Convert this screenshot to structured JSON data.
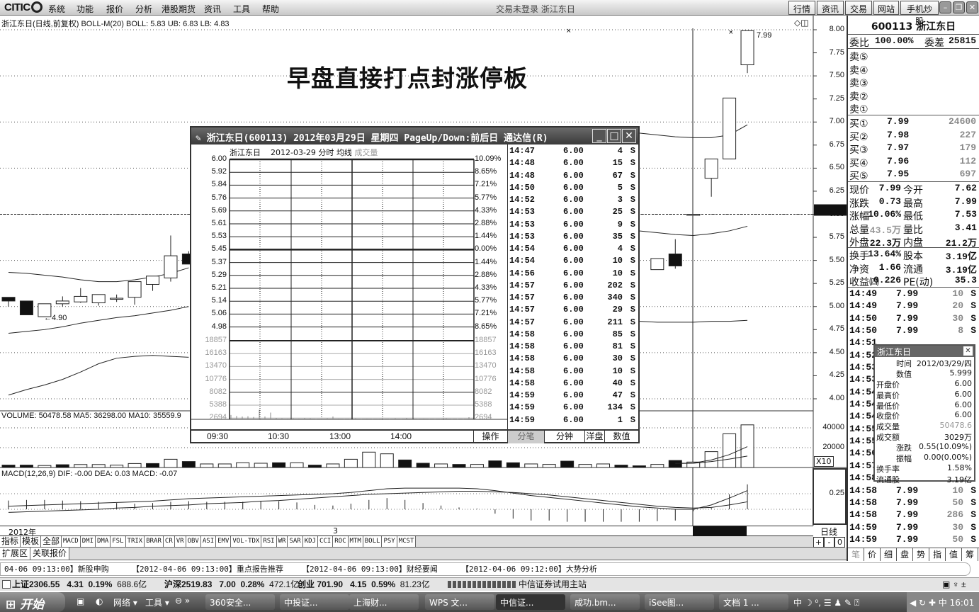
{
  "app": {
    "logo_text": "CITIC",
    "window_title": "交易未登录 浙江东日",
    "menu": [
      "系统",
      "功能",
      "报价",
      "分析",
      "港股期货",
      "资讯",
      "工具",
      "帮助"
    ],
    "top_buttons": [
      "行情",
      "资讯",
      "交易",
      "网站",
      "手机炒股"
    ],
    "window_controls": [
      "minimize-icon",
      "restore-icon",
      "close-icon"
    ]
  },
  "chart": {
    "info": "浙江东日(日线,前复权) BOLL-M(20) BOLL: 5.83 UB: 6.83 LB: 4.83",
    "annotation": "早盘直接打点封涨停板",
    "low_label": "←4.90",
    "high_label": "7.99",
    "y_ticks": [
      "8.00",
      "7.75",
      "7.50",
      "7.25",
      "7.00",
      "6.75",
      "6.50",
      "6.25",
      "6.00",
      "5.75",
      "5.50",
      "5.25",
      "5.00",
      "4.75",
      "4.50",
      "4.25",
      "4.00"
    ],
    "volume_info": "VOLUME: 50478.58 MA5: 36298.00 MA10: 35559.9",
    "volume_ticks": [
      "40000",
      "20000"
    ],
    "volume_unit": "X10",
    "macd_info": "MACD(12,26,9) DIF: -0.00 DEA: 0.03 MACD: -0.07",
    "macd_ticks": [
      "0.25"
    ],
    "date_labels": [
      "2012年",
      "3"
    ],
    "period_label": "日线",
    "zoom_buttons": [
      "+",
      "-",
      "0"
    ]
  },
  "chart_data": {
    "type": "candlestick",
    "y_range": [
      4.0,
      8.0
    ],
    "candles": [
      [
        5.1,
        5.1,
        5.0,
        5.06
      ],
      [
        5.06,
        5.06,
        4.91,
        4.91
      ],
      [
        4.89,
        5.03,
        4.9,
        5.03
      ],
      [
        5.03,
        5.11,
        5.0,
        5.06
      ],
      [
        5.05,
        5.2,
        5.04,
        5.11
      ],
      [
        5.04,
        5.13,
        5.01,
        5.13
      ],
      [
        5.09,
        5.13,
        5.05,
        5.09
      ],
      [
        5.1,
        5.27,
        5.02,
        5.27
      ],
      [
        5.24,
        5.33,
        5.17,
        5.33
      ],
      [
        5.31,
        5.77,
        5.27,
        5.55
      ],
      [
        5.57,
        5.6,
        5.46,
        5.46
      ],
      null,
      null,
      null,
      null,
      null,
      null,
      null,
      null,
      null,
      null,
      null,
      null,
      null,
      null,
      null,
      null,
      null,
      null,
      null,
      null,
      null,
      null,
      null,
      null,
      null,
      [
        5.4,
        5.52,
        5.4,
        5.52
      ],
      [
        5.57,
        5.73,
        5.41,
        5.44
      ],
      [
        6.0,
        6.0,
        5.99,
        6.0
      ],
      [
        6.39,
        6.6,
        6.19,
        6.6
      ],
      [
        6.6,
        7.26,
        6.6,
        7.26
      ],
      [
        7.62,
        7.99,
        7.53,
        7.99
      ]
    ],
    "boll_upper": [
      5.37,
      5.36,
      5.34,
      5.32,
      5.29,
      5.27,
      5.27,
      5.29,
      5.32,
      5.36,
      5.42,
      null,
      null,
      null,
      null,
      null,
      null,
      null,
      null,
      null,
      null,
      null,
      null,
      null,
      null,
      null,
      null,
      null,
      null,
      null,
      null,
      null,
      null,
      null,
      null,
      6.88,
      6.86,
      6.84,
      6.83,
      6.83,
      6.86,
      6.97
    ],
    "boll_mid": [
      4.71,
      4.73,
      4.75,
      4.78,
      4.82,
      4.85,
      4.88,
      4.9,
      4.93,
      4.96,
      5.0,
      null,
      null,
      null,
      null,
      null,
      null,
      null,
      null,
      null,
      null,
      null,
      null,
      null,
      null,
      null,
      null,
      null,
      null,
      null,
      null,
      null,
      null,
      null,
      null,
      5.82,
      5.8,
      5.78,
      5.77,
      5.79,
      5.82,
      5.87
    ],
    "boll_lower": [
      4.04,
      4.1,
      4.15,
      4.21,
      4.29,
      4.38,
      4.44,
      4.46,
      4.47,
      4.46,
      4.45,
      null,
      null,
      null,
      null,
      null,
      null,
      null,
      null,
      null,
      null,
      null,
      null,
      null,
      null,
      null,
      null,
      null,
      null,
      null,
      null,
      null,
      null,
      null,
      null,
      4.84,
      4.83,
      4.83,
      4.83,
      4.84,
      4.84,
      4.85
    ],
    "volume": [
      2400,
      2400,
      2000,
      2800,
      3000,
      3000,
      2400,
      4000,
      4000,
      8300,
      6000,
      3600,
      3600,
      4800,
      4300,
      4800,
      4800,
      2400,
      3600,
      8300,
      15500,
      13800,
      7600,
      4300,
      3600,
      3100,
      3100,
      6700,
      4800,
      3600,
      3100,
      6400,
      3100,
      3600,
      2400,
      1700,
      3100,
      7100,
      5500,
      16000,
      34000,
      43000
    ],
    "volume_up": [
      0,
      0,
      1,
      0,
      1,
      1,
      1,
      1,
      0,
      1,
      0,
      1,
      1,
      1,
      1,
      0,
      1,
      0,
      1,
      1,
      1,
      1,
      0,
      0,
      1,
      0,
      1,
      0,
      0,
      1,
      1,
      0,
      1,
      1,
      0,
      0,
      1,
      0,
      1,
      1,
      1,
      1
    ],
    "volume_ma5": [
      null,
      null,
      null,
      null,
      null,
      null,
      null,
      null,
      null,
      null,
      null,
      null,
      null,
      null,
      null,
      null,
      null,
      null,
      null,
      null,
      null,
      null,
      null,
      null,
      null,
      null,
      null,
      null,
      null,
      null,
      null,
      null,
      null,
      null,
      null,
      null,
      null,
      4200,
      4500,
      7600,
      13000,
      21000
    ],
    "volume_ma10": [
      null,
      null,
      null,
      null,
      null,
      null,
      null,
      null,
      null,
      null,
      null,
      null,
      null,
      null,
      null,
      null,
      null,
      null,
      null,
      null,
      null,
      null,
      null,
      null,
      null,
      null,
      null,
      null,
      null,
      null,
      null,
      null,
      null,
      null,
      null,
      null,
      null,
      4000,
      4300,
      6000,
      8500,
      11500
    ],
    "macd_hist": [
      0.14,
      0.15,
      0.15,
      0.14,
      0.13,
      0.12,
      0.1,
      0.09,
      0.1,
      0.12,
      0.13,
      0.12,
      0.12,
      0.12,
      0.13,
      0.13,
      0.11,
      0.07,
      0.06,
      0.09,
      0.15,
      0.18,
      0.15,
      0.1,
      0.06,
      0.03,
      0.01,
      -0.07,
      -0.15,
      -0.18,
      -0.18,
      -0.2,
      -0.2,
      -0.2,
      -0.2,
      -0.2,
      -0.19,
      -0.18,
      -0.03,
      0.02,
      0.24,
      0.4
    ],
    "dif": [
      0.05,
      0.06,
      0.07,
      0.08,
      0.09,
      0.1,
      0.11,
      0.12,
      0.13,
      0.15,
      0.17,
      0.18,
      0.19,
      0.2,
      0.21,
      0.22,
      0.23,
      0.24,
      0.25,
      0.27,
      0.3,
      0.33,
      0.34,
      0.34,
      0.34,
      0.34,
      0.33,
      0.3,
      0.26,
      0.22,
      0.19,
      0.16,
      0.13,
      0.1,
      0.07,
      0.04,
      0.02,
      0.0,
      0.0,
      0.07,
      0.18,
      0.3
    ],
    "dea": [
      -0.05,
      -0.04,
      -0.03,
      -0.02,
      -0.01,
      0.0,
      0.02,
      0.03,
      0.05,
      0.06,
      0.07,
      0.09,
      0.1,
      0.11,
      0.13,
      0.14,
      0.16,
      0.18,
      0.2,
      0.22,
      0.24,
      0.25,
      0.26,
      0.27,
      0.28,
      0.29,
      0.29,
      0.28,
      0.27,
      0.25,
      0.23,
      0.2,
      0.17,
      0.14,
      0.11,
      0.08,
      0.05,
      0.03,
      0.02,
      0.03,
      0.07,
      0.12
    ]
  },
  "popup": {
    "title": "浙江东日(600113) 2012年03月29日 星期四 PageUp/Down:前后日 通达信(R)",
    "sub_name": "浙江东日",
    "sub_date": "2012-03-29 分时",
    "sub_avg": "均线",
    "sub_vol": "成交量",
    "price_labels": [
      "6.00",
      "5.92",
      "5.84",
      "5.76",
      "5.69",
      "5.61",
      "5.53",
      "5.45",
      "5.37",
      "5.29",
      "5.21",
      "5.14",
      "5.06",
      "4.98"
    ],
    "pct_labels": [
      "10.09%",
      "8.65%",
      "7.21%",
      "5.77%",
      "4.33%",
      "2.88%",
      "1.44%",
      "0.00%",
      "1.44%",
      "2.88%",
      "4.33%",
      "5.77%",
      "7.21%",
      "8.65%"
    ],
    "vol_labels": [
      "18857",
      "16163",
      "13470",
      "10776",
      "8082",
      "5388",
      "2694"
    ],
    "time_labels": [
      "09:30",
      "10:30",
      "13:00",
      "14:00"
    ],
    "tabs": [
      "操作",
      "分笔",
      "分钟",
      "洋盘",
      "数值"
    ],
    "active_tab": "分笔",
    "minute_volume": [
      900,
      700,
      600,
      650,
      500,
      2000,
      600,
      1400,
      300,
      200,
      150,
      200,
      150,
      250,
      200,
      100,
      150,
      200,
      600,
      150,
      100,
      100,
      200,
      100,
      150,
      100,
      120,
      100,
      90,
      200,
      100,
      300,
      100,
      100,
      150,
      100,
      100,
      100,
      200,
      100,
      80,
      100,
      450
    ],
    "ticks": [
      [
        "14:47",
        "6.00",
        "4",
        "S"
      ],
      [
        "14:48",
        "6.00",
        "15",
        "S"
      ],
      [
        "14:48",
        "6.00",
        "67",
        "S"
      ],
      [
        "14:50",
        "6.00",
        "5",
        "S"
      ],
      [
        "14:52",
        "6.00",
        "3",
        "S"
      ],
      [
        "14:53",
        "6.00",
        "25",
        "S"
      ],
      [
        "14:53",
        "6.00",
        "9",
        "S"
      ],
      [
        "14:53",
        "6.00",
        "35",
        "S"
      ],
      [
        "14:54",
        "6.00",
        "4",
        "S"
      ],
      [
        "14:54",
        "6.00",
        "10",
        "S"
      ],
      [
        "14:56",
        "6.00",
        "10",
        "S"
      ],
      [
        "14:57",
        "6.00",
        "202",
        "S"
      ],
      [
        "14:57",
        "6.00",
        "340",
        "S"
      ],
      [
        "14:57",
        "6.00",
        "29",
        "S"
      ],
      [
        "14:57",
        "6.00",
        "211",
        "S"
      ],
      [
        "14:58",
        "6.00",
        "85",
        "S"
      ],
      [
        "14:58",
        "6.00",
        "81",
        "S"
      ],
      [
        "14:58",
        "6.00",
        "30",
        "S"
      ],
      [
        "14:58",
        "6.00",
        "10",
        "S"
      ],
      [
        "14:58",
        "6.00",
        "40",
        "S"
      ],
      [
        "14:59",
        "6.00",
        "47",
        "S"
      ],
      [
        "14:59",
        "6.00",
        "134",
        "S"
      ],
      [
        "14:59",
        "6.00",
        "1",
        "S"
      ]
    ]
  },
  "quote": {
    "header": "600113 浙江东日",
    "weibi_label": "委比",
    "weibi": "100.00%",
    "weicha_label": "委差",
    "weicha": "25815",
    "sells": [
      "卖⑤",
      "卖④",
      "卖③",
      "卖②",
      "卖①"
    ],
    "buys": [
      [
        "买①",
        "7.99",
        "24600"
      ],
      [
        "买②",
        "7.98",
        "227"
      ],
      [
        "买③",
        "7.97",
        "179"
      ],
      [
        "买④",
        "7.96",
        "112"
      ],
      [
        "买⑤",
        "7.95",
        "697"
      ]
    ],
    "stats": [
      [
        "现价",
        "7.99",
        "今开",
        "7.62"
      ],
      [
        "涨跌",
        "0.73",
        "最高",
        "7.99"
      ],
      [
        "涨幅",
        "10.06%",
        "最低",
        "7.53"
      ],
      [
        "总量",
        "43.5万",
        "量比",
        "3.41"
      ],
      [
        "外盘",
        "22.3万",
        "内盘",
        "21.2万"
      ]
    ],
    "stats2": [
      [
        "换手",
        "13.64%",
        "股本",
        "3.19亿"
      ],
      [
        "净资",
        "1.66",
        "流通",
        "3.19亿"
      ],
      [
        "收益㈣",
        "0.226",
        "PE(动)",
        "35.3"
      ]
    ],
    "trades": [
      [
        "14:49",
        "7.99",
        "10",
        "S"
      ],
      [
        "14:49",
        "7.99",
        "20",
        "S"
      ],
      [
        "14:50",
        "7.99",
        "30",
        "S"
      ],
      [
        "14:50",
        "7.99",
        "8",
        "S"
      ],
      [
        "14:51",
        "",
        "",
        ""
      ],
      [
        "14:52",
        "",
        "",
        ""
      ],
      [
        "14:53",
        "",
        "",
        ""
      ],
      [
        "14:53",
        "",
        "",
        ""
      ],
      [
        "14:54",
        "",
        "",
        ""
      ],
      [
        "14:54",
        "",
        "",
        ""
      ],
      [
        "14:54",
        "",
        "",
        ""
      ],
      [
        "14:55",
        "",
        "",
        ""
      ],
      [
        "14:55",
        "",
        "",
        ""
      ],
      [
        "14:56",
        "",
        "",
        ""
      ],
      [
        "14:57",
        "",
        "",
        ""
      ],
      [
        "14:58",
        "",
        "",
        ""
      ],
      [
        "14:58",
        "7.99",
        "10",
        "S"
      ],
      [
        "14:58",
        "7.99",
        "50",
        "S"
      ],
      [
        "14:58",
        "7.99",
        "286",
        "S"
      ],
      [
        "14:59",
        "7.99",
        "30",
        "S"
      ],
      [
        "14:59",
        "7.99",
        "50",
        "S"
      ]
    ],
    "tabs": [
      "笔",
      "价",
      "细",
      "盘",
      "势",
      "指",
      "值",
      "筹"
    ]
  },
  "tooltip": {
    "title": "浙江东日",
    "rows": [
      [
        "时间",
        "2012/03/29/四"
      ],
      [
        "数值",
        "5.999"
      ],
      [
        "开盘价",
        "6.00"
      ],
      [
        "最高价",
        "6.00"
      ],
      [
        "最低价",
        "6.00"
      ],
      [
        "收盘价",
        "6.00"
      ],
      [
        "成交量",
        "50478.6"
      ],
      [
        "成交额",
        "3029万"
      ],
      [
        "涨跌",
        "0.55(10.09%)"
      ],
      [
        "振幅",
        "0.00(0.00%)"
      ],
      [
        "换手率",
        "1.58%"
      ],
      [
        "流通股",
        "3.19亿"
      ]
    ]
  },
  "indicator_tabs": [
    "指标",
    "模板",
    "全部",
    "MACD",
    "DMI",
    "DMA",
    "FSL",
    "TRIX",
    "BRAR",
    "CR",
    "VR",
    "OBV",
    "ASI",
    "EMV",
    "VOL-TDX",
    "RSI",
    "WR",
    "SAR",
    "KDJ",
    "CCI",
    "ROC",
    "MTM",
    "BOLL",
    "PSY",
    "MCST"
  ],
  "ext_tabs": [
    "扩展区",
    "关联报价"
  ],
  "news": [
    "04-06 09:13:00】新股申购",
    "【2012-04-06 09:13:00】重点报告推荐",
    "【2012-04-06 09:13:00】财经要闻",
    "【2012-04-06 09:12:00】大势分析"
  ],
  "status": {
    "sh": "上证2306.55",
    "sh_chg": "4.31",
    "sh_pct": "0.19%",
    "sh_amt": "688.6亿",
    "hs": "沪深2519.83",
    "hs_chg": "7.00",
    "hs_pct": "0.28%",
    "hs_amt": "472.1亿",
    "cy": "创业 701.90",
    "cy_chg": "4.15",
    "cy_pct": "0.59%",
    "cy_amt": "81.23亿",
    "server": "中信证券试用主站"
  },
  "taskbar": {
    "start": "开始",
    "net": "网络 ▾",
    "tools": "工具 ▾",
    "tasks": [
      "360安全...",
      "中投证...",
      "上海财...",
      "WPS 文...",
      "中信证...",
      "成功.bm...",
      "iSee图...",
      "文档 1 ..."
    ],
    "ime": "中",
    "clock": "16:01"
  }
}
